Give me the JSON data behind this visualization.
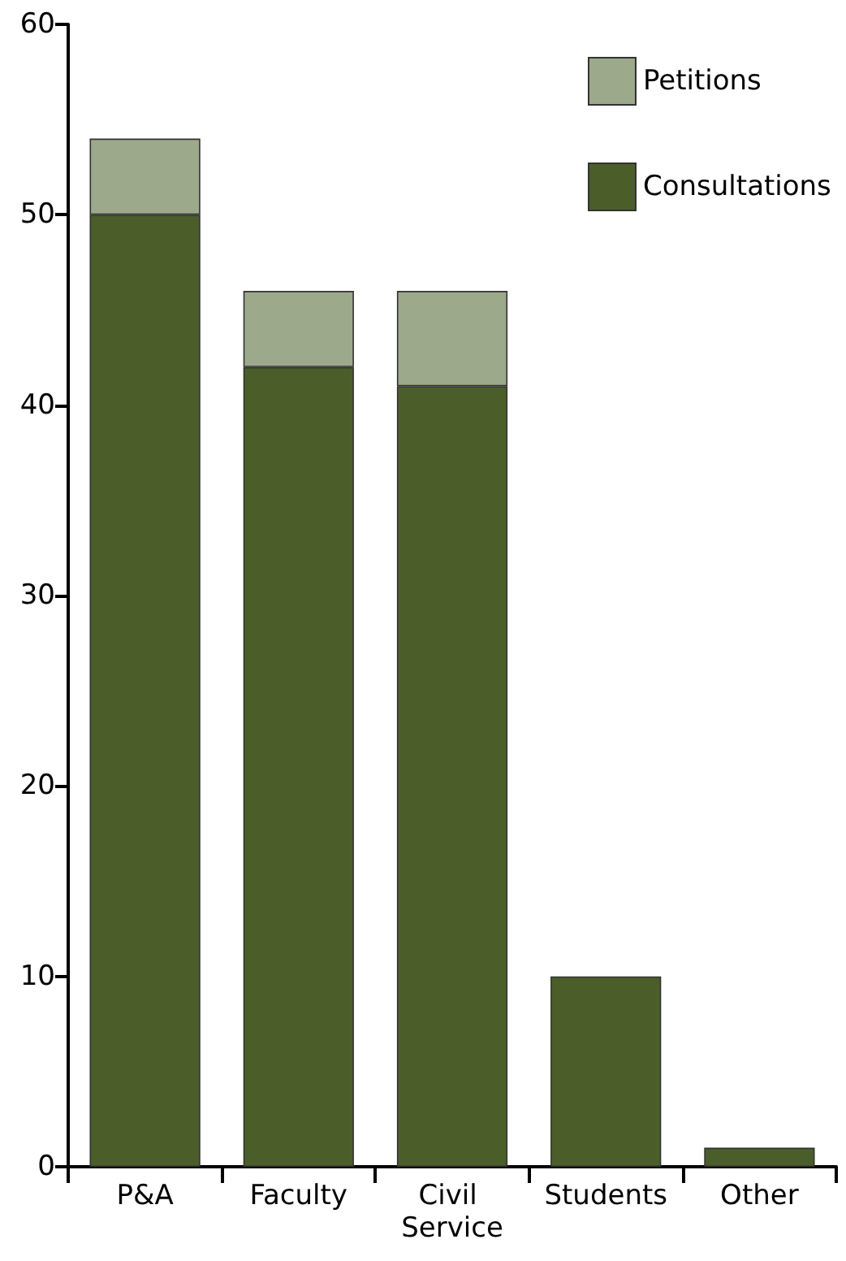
{
  "chart_data": {
    "type": "bar",
    "stacked": true,
    "categories": [
      "P&A",
      "Faculty",
      "Civil Service",
      "Students",
      "Other"
    ],
    "series": [
      {
        "name": "Consultations",
        "color": "#4b5e2a",
        "values": [
          50,
          42,
          41,
          10,
          1
        ]
      },
      {
        "name": "Petitions",
        "color": "#9ca98b",
        "values": [
          4,
          4,
          5,
          0,
          0
        ]
      }
    ],
    "ylim": [
      0,
      60
    ],
    "yticks": [
      0,
      10,
      20,
      30,
      40,
      50,
      60
    ],
    "grid": false,
    "legend": "top right"
  }
}
